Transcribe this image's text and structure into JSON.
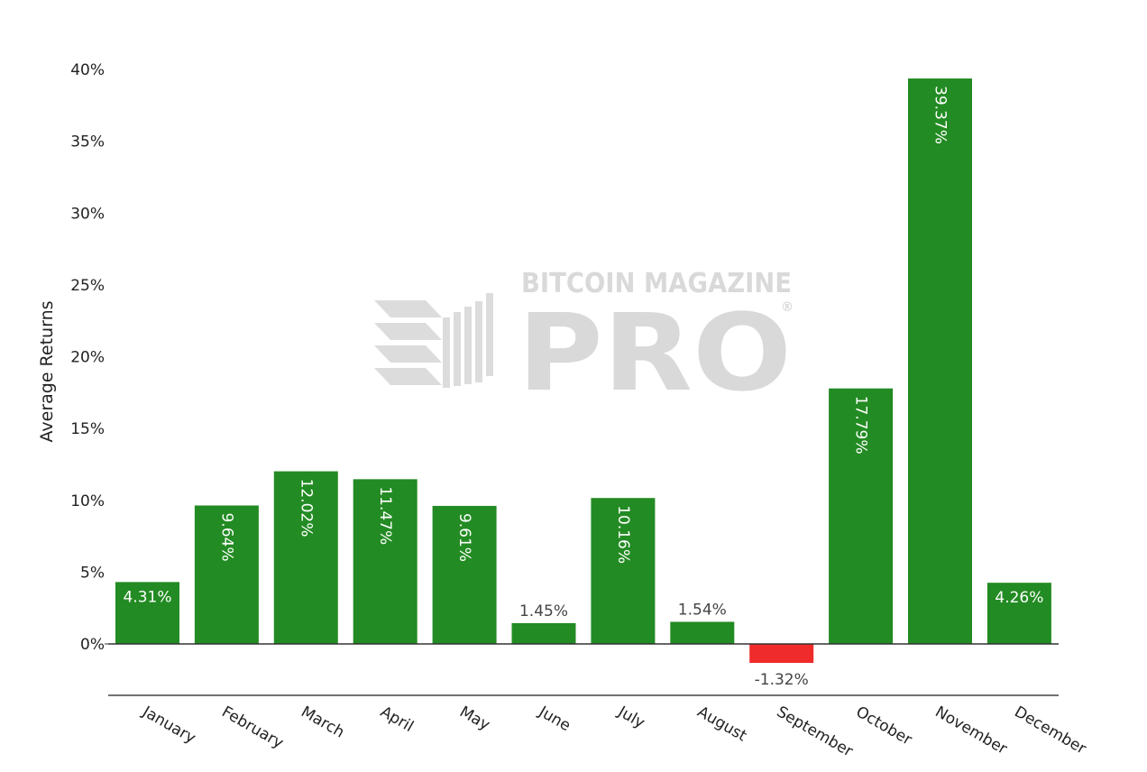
{
  "chart_data": {
    "type": "bar",
    "title": "",
    "xlabel": "",
    "ylabel": "Average Returns",
    "ylim": [
      0,
      40
    ],
    "ytick_values": [
      0,
      5,
      10,
      15,
      20,
      25,
      30,
      35,
      40
    ],
    "yticks": [
      "0%",
      "5%",
      "10%",
      "15%",
      "20%",
      "25%",
      "30%",
      "35%",
      "40%"
    ],
    "grid": false,
    "legend": "none",
    "categories": [
      "January",
      "February",
      "March",
      "April",
      "May",
      "June",
      "July",
      "August",
      "September",
      "October",
      "November",
      "December"
    ],
    "values": [
      4.31,
      9.64,
      12.02,
      11.47,
      9.61,
      1.45,
      10.16,
      1.54,
      -1.32,
      17.79,
      39.37,
      4.26
    ],
    "data_labels": [
      "4.31%",
      "9.64%",
      "12.02%",
      "11.47%",
      "9.61%",
      "1.45%",
      "10.16%",
      "1.54%",
      "-1.32%",
      "17.79%",
      "39.37%",
      "4.26%"
    ],
    "colors": {
      "positive": "#238b23",
      "negative": "#ef2b2b"
    }
  },
  "watermark": {
    "line1": "BITCOIN MAGAZINE",
    "line2": "PRO",
    "mark": "®"
  }
}
